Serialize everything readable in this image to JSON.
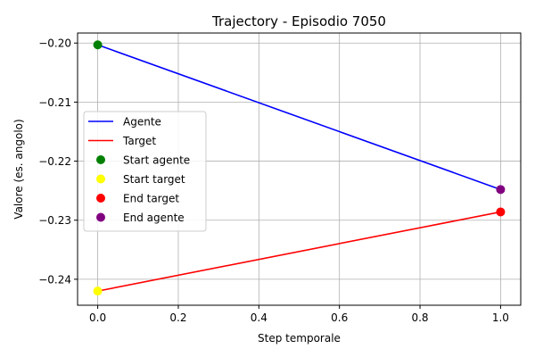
{
  "chart_data": {
    "type": "line",
    "title": "Trajectory - Episodio 7050",
    "xlabel": "Step temporale",
    "ylabel": "Valore (es. angolo)",
    "xlim": [
      -0.05,
      1.05
    ],
    "ylim": [
      -0.2444,
      -0.1983
    ],
    "xticks": [
      0.0,
      0.2,
      0.4,
      0.6,
      0.8,
      1.0
    ],
    "xtick_labels": [
      "0.0",
      "0.2",
      "0.4",
      "0.6",
      "0.8",
      "1.0"
    ],
    "yticks": [
      -0.24,
      -0.23,
      -0.22,
      -0.21,
      -0.2
    ],
    "ytick_labels": [
      "−0.24",
      "−0.23",
      "−0.22",
      "−0.21",
      "−0.20"
    ],
    "grid": true,
    "legend_position": "center-left",
    "series": [
      {
        "name": "Agente",
        "kind": "line",
        "color": "#0000ff",
        "x": [
          0,
          1
        ],
        "y": [
          -0.2003,
          -0.2248
        ]
      },
      {
        "name": "Target",
        "kind": "line",
        "color": "#ff0000",
        "x": [
          0,
          1
        ],
        "y": [
          -0.242,
          -0.2286
        ]
      }
    ],
    "markers": [
      {
        "name": "Start agente",
        "color": "#008000",
        "x": 0,
        "y": -0.2003
      },
      {
        "name": "Start target",
        "color": "#ffff00",
        "x": 0,
        "y": -0.242
      },
      {
        "name": "End target",
        "color": "#ff0000",
        "x": 1,
        "y": -0.2286
      },
      {
        "name": "End agente",
        "color": "#800080",
        "x": 1,
        "y": -0.2248
      }
    ],
    "legend": [
      "Agente",
      "Target",
      "Start agente",
      "Start target",
      "End target",
      "End agente"
    ]
  }
}
